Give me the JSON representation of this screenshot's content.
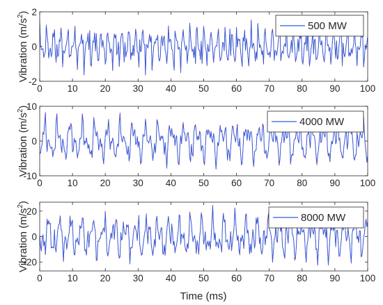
{
  "figure": {
    "xlabel": "Time (ms)",
    "ylabel_main": "Vibration (m/s",
    "ylabel_sup": "2",
    "ylabel_close": ")",
    "line_color": "#2f5fd8",
    "accent_color": "#b02aa0",
    "axis_color": "#262626"
  },
  "chart_data": [
    {
      "type": "line",
      "title": "",
      "xlabel": "",
      "ylabel": "Vibration (m/s2)",
      "xlim": [
        0,
        100
      ],
      "ylim": [
        -2,
        2
      ],
      "xticks": [
        "0",
        "10",
        "20",
        "30",
        "40",
        "50",
        "60",
        "70",
        "80",
        "90",
        "100"
      ],
      "yticks": [
        "-2",
        "0",
        "2"
      ],
      "ytick_values": [
        -2,
        0,
        2
      ],
      "legend": "top-right",
      "grid": false,
      "signal": {
        "amplitude": 1.6,
        "base_freq_per_ms": 0.47,
        "sample_step_ms": 0.25
      },
      "series": [
        {
          "name": "500 MW"
        }
      ]
    },
    {
      "type": "line",
      "title": "",
      "xlabel": "",
      "ylabel": "Vibration (m/s2)",
      "xlim": [
        0,
        100
      ],
      "ylim": [
        -10,
        10
      ],
      "xticks": [
        "0",
        "10",
        "20",
        "30",
        "40",
        "50",
        "60",
        "70",
        "80",
        "90",
        "100"
      ],
      "yticks": [
        "-10",
        "0",
        "10"
      ],
      "ytick_values": [
        -10,
        0,
        10
      ],
      "legend": "top-right",
      "grid": false,
      "signal": {
        "amplitude": 8.0,
        "base_freq_per_ms": 0.27,
        "sample_step_ms": 0.25
      },
      "series": [
        {
          "name": "4000 MW"
        }
      ]
    },
    {
      "type": "line",
      "title": "",
      "xlabel": "Time (ms)",
      "ylabel": "Vibration (m/s2)",
      "xlim": [
        0,
        100
      ],
      "ylim": [
        -27,
        27
      ],
      "xticks": [
        "0",
        "10",
        "20",
        "30",
        "40",
        "50",
        "60",
        "70",
        "80",
        "90",
        "100"
      ],
      "yticks": [
        "-20",
        "0",
        "20"
      ],
      "ytick_values": [
        -20,
        0,
        20
      ],
      "legend": "top-right",
      "grid": false,
      "signal": {
        "amplitude": 24.0,
        "base_freq_per_ms": 0.3,
        "sample_step_ms": 0.25
      },
      "series": [
        {
          "name": "8000 MW"
        }
      ]
    }
  ]
}
